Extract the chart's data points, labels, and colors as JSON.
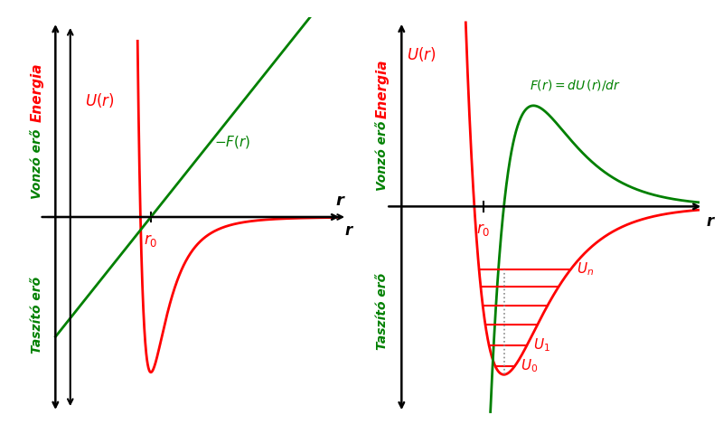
{
  "fig_width": 8.0,
  "fig_height": 4.8,
  "bg_color": "#ffffff",
  "panel1": {
    "title": "",
    "energia_label": "Energia",
    "vonzo_label": "Vonzó erő",
    "taszito_label": "Taszító erő",
    "r_label": "r",
    "r0_label": "$r_0$",
    "Ur_label": "$U(r)$",
    "Fr_label": "$-F(r)$",
    "U_color": "#ff0000",
    "F_color": "#008000",
    "axis_color": "#000000",
    "label_color_red": "#ff0000",
    "label_color_green": "#008000"
  },
  "panel2": {
    "energia_label": "Energia",
    "vonzo_label": "Vonzó erő",
    "taszito_label": "Taszító erő",
    "r_label": "r",
    "r0_label": "$r_0$",
    "Ur_label": "$U(r)$",
    "Fr_label": "$F(r) = dU\\,(r)/ dr$",
    "U_color": "#ff0000",
    "F_color": "#008000",
    "axis_color": "#000000",
    "Un_label": "$U_n$",
    "U1_label": "$U_1$",
    "U0_label": "$U_0$",
    "level_color": "#ff0000",
    "dotted_color": "#888888"
  }
}
